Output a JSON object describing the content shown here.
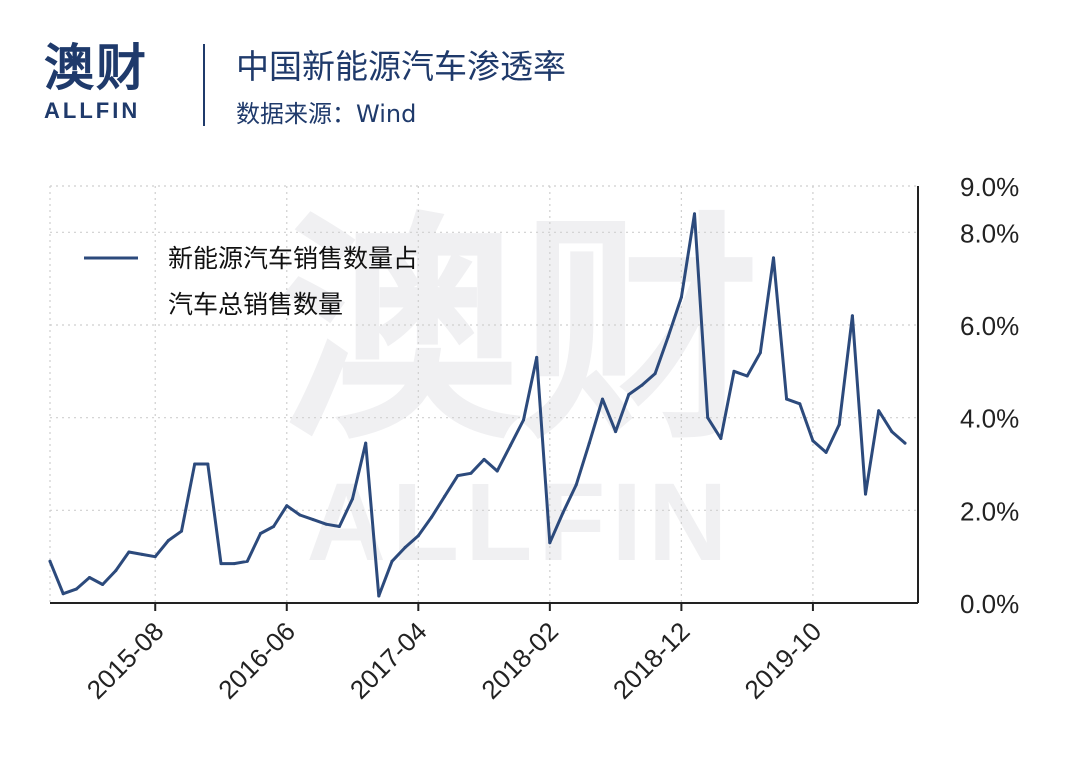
{
  "header": {
    "logo_cn": "澳财",
    "logo_en": "ALLFIN",
    "title": "中国新能源汽车渗透率",
    "source": "数据来源：Wind"
  },
  "watermark": {
    "cn": "澳财",
    "en": "ALLFIN"
  },
  "colors": {
    "line": "#2c4a7c",
    "brand": "#1f3a6b",
    "accent": "#d33b57",
    "grid": "#cfcfcf"
  },
  "chart_data": {
    "type": "line",
    "legend": {
      "line1": "新能源汽车销售数量占",
      "line2": "汽车总销售数量",
      "placement": "top-left"
    },
    "y_axis": {
      "position": "right",
      "ylim": [
        0,
        9
      ],
      "ticks": [
        0,
        2,
        4,
        6,
        8,
        9
      ],
      "tick_labels": [
        "0.0%",
        "2.0%",
        "4.0%",
        "6.0%",
        "8.0%",
        "9.0%"
      ]
    },
    "x_axis": {
      "tick_labels": [
        "2015-08",
        "2016-06",
        "2017-04",
        "2018-02",
        "2018-12",
        "2019-10"
      ],
      "tick_index": [
        8,
        18,
        28,
        38,
        48,
        58
      ]
    },
    "grid": true,
    "series": [
      {
        "values": [
          0.9,
          0.2,
          0.3,
          0.55,
          0.4,
          0.7,
          1.1,
          1.05,
          1.0,
          1.35,
          1.55,
          3.0,
          3.0,
          0.85,
          0.85,
          0.9,
          1.5,
          1.65,
          2.1,
          1.9,
          1.8,
          1.7,
          1.65,
          2.25,
          3.45,
          0.15,
          0.9,
          1.2,
          1.45,
          1.85,
          2.3,
          2.75,
          2.8,
          3.1,
          2.85,
          3.4,
          3.95,
          5.3,
          1.3,
          1.95,
          2.55,
          3.45,
          4.4,
          3.7,
          4.5,
          4.7,
          4.95,
          5.75,
          6.6,
          8.4,
          4.0,
          3.55,
          5.0,
          4.9,
          5.4,
          7.45,
          4.4,
          4.3,
          3.5,
          3.25,
          3.85,
          6.2,
          2.35,
          4.15,
          3.7,
          3.45
        ]
      }
    ]
  }
}
